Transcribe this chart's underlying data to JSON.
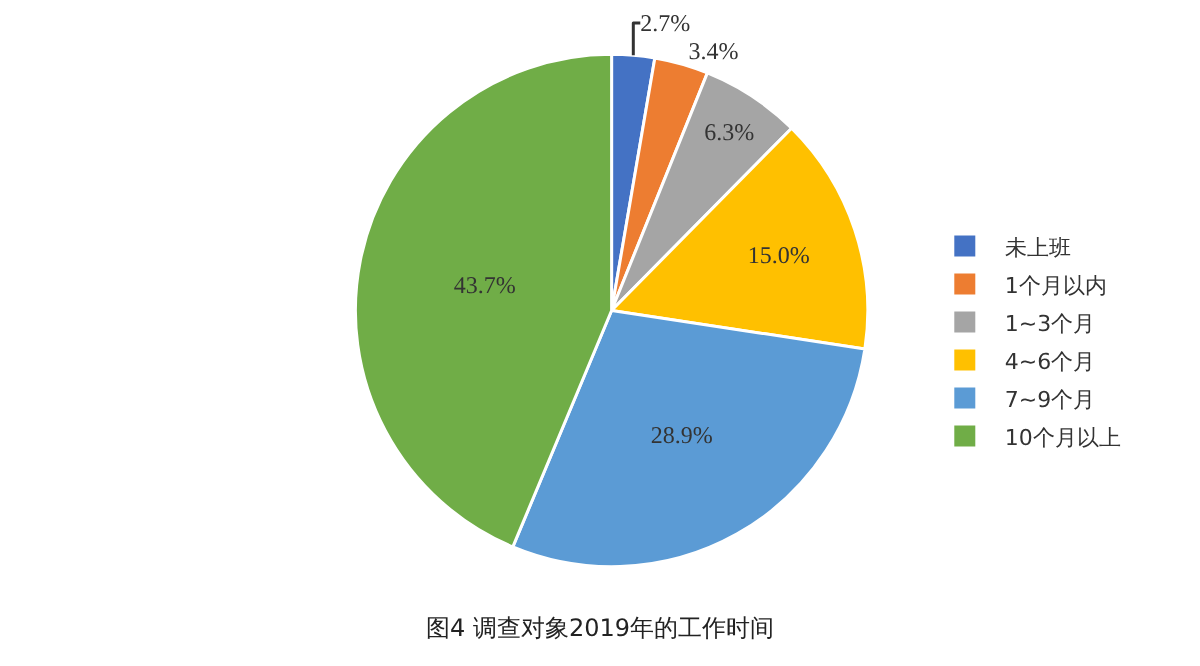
{
  "chart_data": {
    "type": "pie",
    "title": "图4 调查对象2019年的工作时间",
    "categories": [
      "未上班",
      "1个月以内",
      "1~3个月",
      "4~6个月",
      "7~9个月",
      "10个月以上"
    ],
    "values": [
      2.7,
      3.4,
      6.3,
      15.0,
      28.9,
      43.7
    ],
    "value_labels": [
      "2.7%",
      "3.4%",
      "6.3%",
      "15.0%",
      "28.9%",
      "43.7%"
    ],
    "colors": [
      "#4472c4",
      "#ed7d31",
      "#a5a5a5",
      "#ffc000",
      "#5b9bd5",
      "#70ad47"
    ],
    "legend": "right"
  }
}
